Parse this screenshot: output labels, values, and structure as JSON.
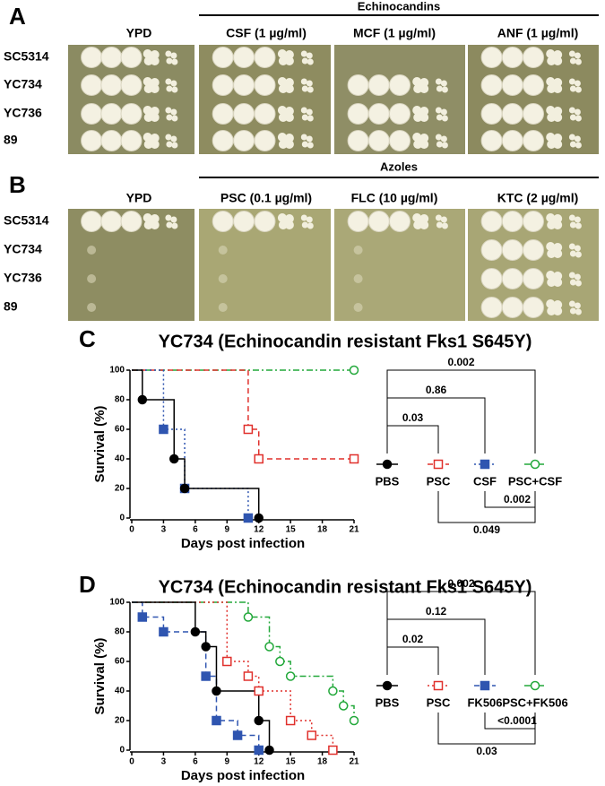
{
  "panels": [
    {
      "label": "A",
      "group_title": "Echinocandins",
      "columns": [
        "YPD",
        "CSF (1 µg/ml)",
        "MCF (1 µg/ml)",
        "ANF (1 µg/ml)"
      ],
      "rows": [
        "SC5314",
        "YC734",
        "YC736",
        "89"
      ]
    },
    {
      "label": "B",
      "group_title": "Azoles",
      "columns": [
        "YPD",
        "PSC (0.1 µg/ml)",
        "FLC (10 µg/ml)",
        "KTC (2 µg/ml)"
      ],
      "rows": [
        "SC5314",
        "YC734",
        "YC736",
        "89"
      ]
    }
  ],
  "chart_data": [
    {
      "type": "line",
      "panel_label": "C",
      "title": "YC734 (Echinocandin resistant Fks1 S645Y)",
      "x_label": "Days post infection",
      "y_label": "Survival (%)",
      "xlim": [
        0,
        21
      ],
      "xticks": [
        0,
        3,
        6,
        9,
        12,
        15,
        18,
        21
      ],
      "ylim": [
        0,
        100
      ],
      "yticks": [
        0,
        20,
        40,
        60,
        80,
        100
      ],
      "series": [
        {
          "name": "PBS",
          "color": "#000000",
          "label_color": "#000000",
          "linestyle": "solid",
          "marker": "circle",
          "filled": true,
          "x": [
            0,
            1,
            4,
            5,
            12
          ],
          "values": [
            100,
            80,
            40,
            20,
            0
          ]
        },
        {
          "name": "PSC",
          "color": "#e0302c",
          "label_color": "#e0302c",
          "linestyle": "dashed",
          "marker": "square",
          "filled": false,
          "x": [
            0,
            11,
            12,
            21
          ],
          "values": [
            100,
            60,
            40,
            40
          ]
        },
        {
          "name": "CSF",
          "color": "#2f55b0",
          "label_color": "#26266e",
          "linestyle": "dotted",
          "marker": "square",
          "filled": true,
          "x": [
            0,
            3,
            5,
            11
          ],
          "values": [
            100,
            60,
            20,
            0
          ]
        },
        {
          "name": "PSC+CSF",
          "color": "#22a83a",
          "label_color": "#22a83a",
          "linestyle": "dashdot",
          "marker": "circle",
          "filled": false,
          "x": [
            0,
            21
          ],
          "values": [
            100,
            100
          ]
        }
      ],
      "comparisons": [
        {
          "series": [
            "PBS",
            "PSC"
          ],
          "p": "0.03",
          "position": "above"
        },
        {
          "series": [
            "PBS",
            "CSF"
          ],
          "p": "0.86",
          "position": "above"
        },
        {
          "series": [
            "PBS",
            "PSC+CSF"
          ],
          "p": "0.002",
          "position": "above"
        },
        {
          "series": [
            "CSF",
            "PSC+CSF"
          ],
          "p": "0.002",
          "position": "below"
        },
        {
          "series": [
            "PSC",
            "PSC+CSF"
          ],
          "p": "0.049",
          "position": "below"
        }
      ]
    },
    {
      "type": "line",
      "panel_label": "D",
      "title": "YC734 (Echinocandin resistant Fks1 S645Y)",
      "x_label": "Days post infection",
      "y_label": "Survival (%)",
      "xlim": [
        0,
        21
      ],
      "xticks": [
        0,
        3,
        6,
        9,
        12,
        15,
        18,
        21
      ],
      "ylim": [
        0,
        100
      ],
      "yticks": [
        0,
        20,
        40,
        60,
        80,
        100
      ],
      "series": [
        {
          "name": "PBS",
          "color": "#000000",
          "label_color": "#000000",
          "linestyle": "solid",
          "marker": "circle",
          "filled": true,
          "x": [
            0,
            6,
            7,
            8,
            12,
            13
          ],
          "values": [
            100,
            80,
            70,
            40,
            20,
            0
          ]
        },
        {
          "name": "PSC",
          "color": "#e0302c",
          "label_color": "#e0302c",
          "linestyle": "dotted",
          "marker": "square",
          "filled": false,
          "x": [
            0,
            9,
            11,
            12,
            15,
            17,
            19
          ],
          "values": [
            100,
            60,
            50,
            40,
            20,
            10,
            0
          ]
        },
        {
          "name": "FK506",
          "color": "#2f55b0",
          "label_color": "#26266e",
          "linestyle": "dashed",
          "marker": "square",
          "filled": true,
          "x": [
            0,
            1,
            3,
            7,
            8,
            10,
            12
          ],
          "values": [
            100,
            90,
            80,
            50,
            20,
            10,
            0
          ]
        },
        {
          "name": "PSC+FK506",
          "color": "#22a83a",
          "label_color": "#22a83a",
          "linestyle": "dashdot",
          "marker": "circle",
          "filled": false,
          "x": [
            0,
            11,
            13,
            14,
            15,
            19,
            20,
            21
          ],
          "values": [
            100,
            90,
            70,
            60,
            50,
            40,
            30,
            20
          ]
        }
      ],
      "comparisons": [
        {
          "series": [
            "PBS",
            "PSC"
          ],
          "p": "0.02",
          "position": "above"
        },
        {
          "series": [
            "PBS",
            "FK506"
          ],
          "p": "0.12",
          "position": "above"
        },
        {
          "series": [
            "PBS",
            "PSC+FK506"
          ],
          "p": "0.002",
          "position": "above"
        },
        {
          "series": [
            "FK506",
            "PSC+FK506"
          ],
          "p": "<0.0001",
          "position": "below"
        },
        {
          "series": [
            "PSC",
            "PSC+FK506"
          ],
          "p": "0.03",
          "position": "below"
        }
      ]
    }
  ]
}
